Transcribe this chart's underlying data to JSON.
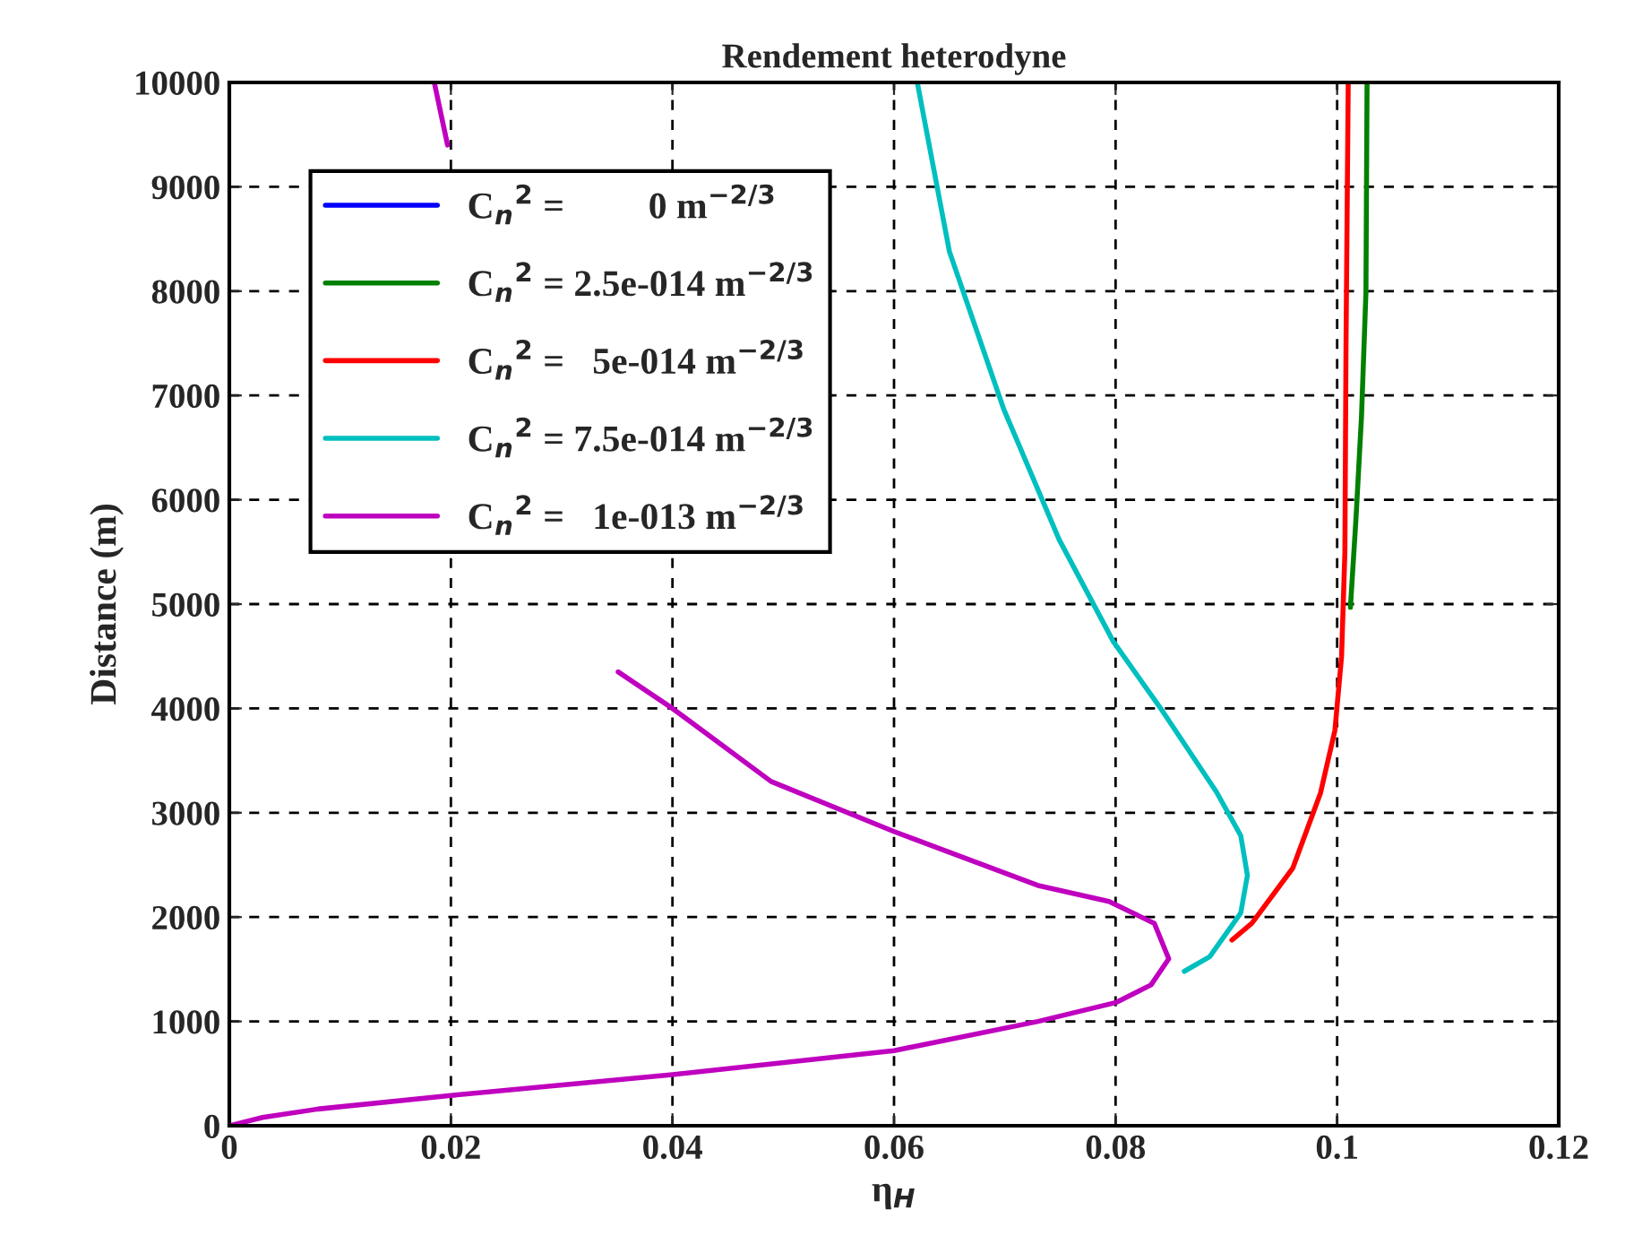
{
  "chart_data": {
    "type": "line",
    "title": "Rendement heterodyne",
    "xlabel": "η$_{H}$",
    "ylabel": "Distance (m)",
    "xlim": [
      0,
      0.12
    ],
    "xticks": [
      0,
      0.02,
      0.04,
      0.06,
      0.08,
      0.1,
      0.12
    ],
    "ylim": [
      0,
      10000
    ],
    "yticks": [
      0,
      1000,
      2000,
      3000,
      4000,
      5000,
      6000,
      7000,
      8000,
      9000,
      10000
    ],
    "grid": true,
    "legend": "top left",
    "line_style": "solid",
    "series": [
      {
        "name": "C$_{n}$$^{2}$ =         0 m$^{−2/3}$",
        "color": "#0000ff"
      },
      {
        "name": "C$_{n}$$^{2}$ = 2.5e-014 m$^{−2/3}$",
        "color": "#008000",
        "x": [
          0.1012,
          0.1017,
          0.1022,
          0.1026,
          0.1027
        ],
        "values": [
          4970,
          5820,
          6800,
          7990,
          10000
        ]
      },
      {
        "name": "C$_{n}$$^{2}$ =   5e-014 m$^{−2/3}$",
        "color": "#ff0000",
        "x": [
          0.0905,
          0.0923,
          0.096,
          0.0985,
          0.0998,
          0.1004,
          0.1007,
          0.1008,
          0.101
        ],
        "values": [
          1780,
          1940,
          2470,
          3190,
          3790,
          4500,
          5500,
          7470,
          10000
        ]
      },
      {
        "name": "C$_{n}$$^{2}$ = 7.5e-014 m$^{−2/3}$",
        "color": "#00bfbf",
        "x": [
          0.0862,
          0.0885,
          0.0891,
          0.0913,
          0.0919,
          0.0913,
          0.0891,
          0.0842,
          0.0798,
          0.0749,
          0.0699,
          0.065,
          0.0621
        ],
        "values": [
          1480,
          1620,
          1710,
          2040,
          2400,
          2780,
          3200,
          3980,
          4640,
          5620,
          6870,
          8380,
          10000
        ]
      },
      {
        "name": "C$_{n}$$^{2}$ =   1e-013 m$^{−2/3}$",
        "color": "#bf00bf",
        "x": [
          0,
          0.003,
          0.008,
          0.02,
          0.04,
          0.06,
          0.073,
          0.08,
          0.0832,
          0.0848,
          0.0835,
          0.0794,
          0.0731,
          0.06,
          0.0489,
          0.04,
          0.0351,
          0.027,
          0.0197,
          0.0185
        ],
        "values": [
          0,
          80,
          160,
          290,
          490,
          720,
          1000,
          1180,
          1350,
          1600,
          1940,
          2150,
          2300,
          2820,
          3300,
          4000,
          4350,
          null,
          9400,
          10000
        ]
      }
    ]
  }
}
